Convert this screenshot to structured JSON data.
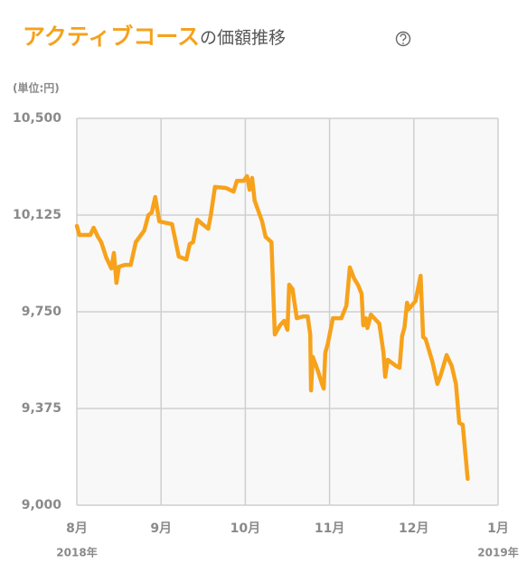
{
  "chart_data": {
    "type": "line",
    "title_highlight": "アクティブコース",
    "title_rest": "の価額推移",
    "unit_label": "(単位:円)",
    "color": "#f7a21b",
    "grid": true,
    "xlim": [
      8,
      13
    ],
    "xticks": [
      {
        "value": 8,
        "label": "8月"
      },
      {
        "value": 9,
        "label": "9月"
      },
      {
        "value": 10,
        "label": "10月"
      },
      {
        "value": 11,
        "label": "11月"
      },
      {
        "value": 12,
        "label": "12月"
      },
      {
        "value": 13,
        "label": "1月"
      }
    ],
    "xtick_sublabels": [
      "2018年",
      null,
      null,
      null,
      null,
      "2019年"
    ],
    "ylim": [
      9000,
      10500
    ],
    "yticks": [
      {
        "value": 9000,
        "label": "9,000"
      },
      {
        "value": 9375,
        "label": "9,375"
      },
      {
        "value": 9750,
        "label": "9,750"
      },
      {
        "value": 10125,
        "label": "10,125"
      },
      {
        "value": 10500,
        "label": "10,500"
      }
    ],
    "x": [
      8.0,
      8.03,
      8.16,
      8.2,
      8.25,
      8.29,
      8.35,
      8.41,
      8.44,
      8.47,
      8.5,
      8.57,
      8.64,
      8.7,
      8.8,
      8.85,
      8.89,
      8.93,
      8.98,
      9.08,
      9.13,
      9.21,
      9.3,
      9.34,
      9.38,
      9.43,
      9.49,
      9.56,
      9.59,
      9.64,
      9.77,
      9.86,
      9.9,
      9.98,
      10.02,
      10.05,
      10.08,
      10.11,
      10.2,
      10.24,
      10.31,
      10.35,
      10.41,
      10.46,
      10.5,
      10.52,
      10.56,
      10.61,
      10.69,
      10.74,
      10.77,
      10.78,
      10.8,
      10.86,
      10.91,
      10.93,
      10.95,
      10.98,
      11.04,
      11.14,
      11.2,
      11.24,
      11.29,
      11.34,
      11.38,
      11.4,
      11.43,
      11.45,
      11.49,
      11.59,
      11.64,
      11.66,
      11.69,
      11.79,
      11.83,
      11.86,
      11.89,
      11.92,
      11.94,
      12.02,
      12.08,
      12.11,
      12.14,
      12.22,
      12.28,
      12.32,
      12.39,
      12.45,
      12.5,
      12.54,
      12.58,
      12.64
    ],
    "values": [
      10083,
      10048,
      10048,
      10076,
      10041,
      10020,
      9960,
      9918,
      9978,
      9862,
      9925,
      9932,
      9932,
      10020,
      10065,
      10125,
      10135,
      10195,
      10100,
      10093,
      10090,
      9964,
      9953,
      10013,
      10020,
      10107,
      10090,
      10072,
      10125,
      10234,
      10230,
      10216,
      10258,
      10258,
      10276,
      10223,
      10269,
      10181,
      10100,
      10041,
      10020,
      9662,
      9697,
      9715,
      9680,
      9855,
      9838,
      9725,
      9732,
      9732,
      9662,
      9445,
      9575,
      9522,
      9470,
      9452,
      9592,
      9627,
      9725,
      9725,
      9774,
      9922,
      9880,
      9852,
      9820,
      9697,
      9725,
      9687,
      9739,
      9704,
      9592,
      9498,
      9564,
      9540,
      9533,
      9655,
      9690,
      9785,
      9760,
      9792,
      9890,
      9652,
      9645,
      9557,
      9470,
      9505,
      9582,
      9540,
      9470,
      9319,
      9312,
      9102
    ]
  }
}
